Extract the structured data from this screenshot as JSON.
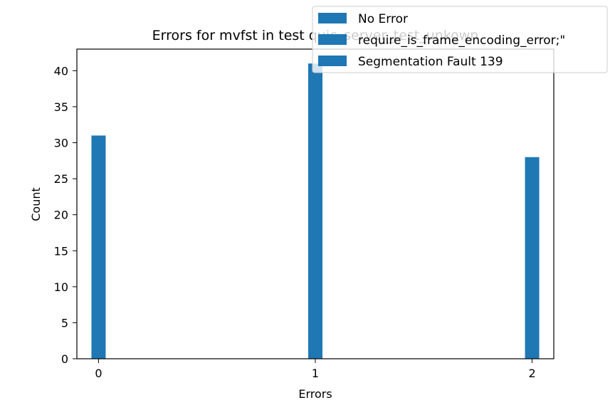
{
  "chart_data": {
    "type": "bar",
    "title": "Errors for mvfst in test quic_server_test_unkown",
    "xlabel": "Errors",
    "ylabel": "Count",
    "categories": [
      "0",
      "1",
      "2"
    ],
    "x": [
      0,
      1,
      2
    ],
    "xlim": [
      -0.1,
      2.1
    ],
    "ylim": [
      0,
      43
    ],
    "yticks": [
      0,
      5,
      10,
      15,
      20,
      25,
      30,
      35,
      40
    ],
    "grid": false,
    "legend_position": "top-right",
    "series": [
      {
        "name": "No Error",
        "x": 0,
        "value": 31,
        "color": "#1f77b4"
      },
      {
        "name": "require_is_frame_encoding_error;\"",
        "x": 1,
        "value": 41,
        "color": "#1f77b4"
      },
      {
        "name": "Segmentation Fault 139",
        "x": 2,
        "value": 28,
        "color": "#1f77b4"
      }
    ]
  }
}
